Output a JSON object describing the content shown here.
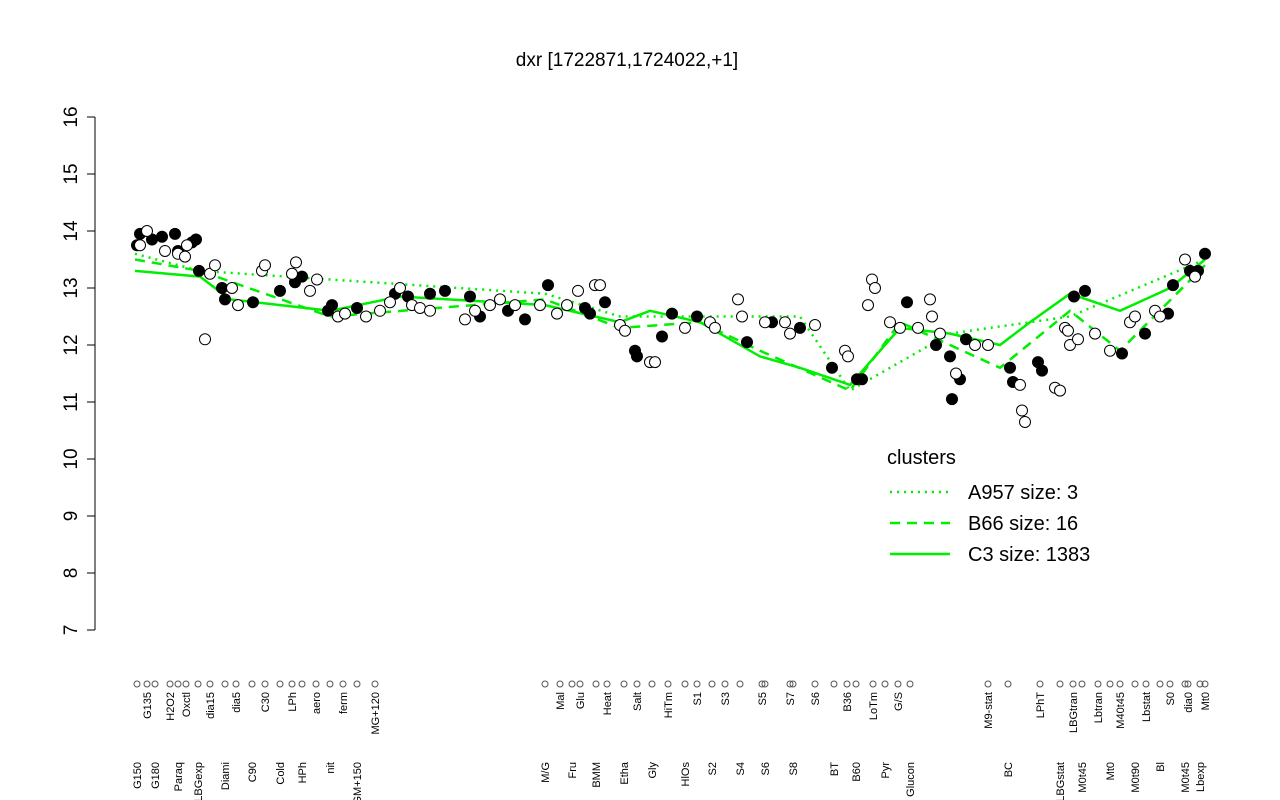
{
  "chart_data": {
    "type": "scatter",
    "title": "dxr [1722871,1724022,+1]",
    "xlim": [
      0,
      1123
    ],
    "ylim": [
      7,
      16
    ],
    "yticks": [
      7,
      8,
      9,
      10,
      11,
      12,
      13,
      14,
      15,
      16
    ],
    "xticks": [
      {
        "value": 42,
        "label": "G150"
      },
      {
        "value": 52,
        "label": "G135"
      },
      {
        "value": 60,
        "label": "G180"
      },
      {
        "value": 75,
        "label": "H2O2"
      },
      {
        "value": 83,
        "label": "Paraq"
      },
      {
        "value": 91,
        "label": "Oxctl"
      },
      {
        "value": 103,
        "label": "LBGexp"
      },
      {
        "value": 115,
        "label": "dia15"
      },
      {
        "value": 130,
        "label": "Diami"
      },
      {
        "value": 141,
        "label": "dia5"
      },
      {
        "value": 157,
        "label": "C90"
      },
      {
        "value": 170,
        "label": "C30"
      },
      {
        "value": 185,
        "label": "Cold"
      },
      {
        "value": 197,
        "label": "LPh"
      },
      {
        "value": 207,
        "label": "HPh"
      },
      {
        "value": 221,
        "label": "aero"
      },
      {
        "value": 235,
        "label": "nit"
      },
      {
        "value": 248,
        "label": "ferm"
      },
      {
        "value": 262,
        "label": "GM+150"
      },
      {
        "value": 280,
        "label": "MG+120"
      },
      {
        "value": 450,
        "label": "M/G"
      },
      {
        "value": 465,
        "label": "Mal"
      },
      {
        "value": 477,
        "label": "Fru"
      },
      {
        "value": 485,
        "label": "Glu"
      },
      {
        "value": 501,
        "label": "BMM"
      },
      {
        "value": 512,
        "label": "Heat"
      },
      {
        "value": 529,
        "label": "Etha"
      },
      {
        "value": 542,
        "label": "Salt"
      },
      {
        "value": 557,
        "label": "Gly"
      },
      {
        "value": 573,
        "label": "HiTm"
      },
      {
        "value": 590,
        "label": "HlOs"
      },
      {
        "value": 602,
        "label": "S1"
      },
      {
        "value": 617,
        "label": "S2"
      },
      {
        "value": 630,
        "label": "S3"
      },
      {
        "value": 645,
        "label": "S4"
      },
      {
        "value": 667,
        "label": "S5"
      },
      {
        "value": 670,
        "label": "S6"
      },
      {
        "value": 695,
        "label": "S7"
      },
      {
        "value": 698,
        "label": "S8"
      },
      {
        "value": 720,
        "label": "S6"
      },
      {
        "value": 739,
        "label": "BT"
      },
      {
        "value": 752,
        "label": "B36"
      },
      {
        "value": 761,
        "label": "B60"
      },
      {
        "value": 778,
        "label": "LoTm"
      },
      {
        "value": 790,
        "label": "Pyr"
      },
      {
        "value": 803,
        "label": "G/S"
      },
      {
        "value": 815,
        "label": "Glucon"
      },
      {
        "value": 893,
        "label": "M9-stat"
      },
      {
        "value": 913,
        "label": "BC"
      },
      {
        "value": 945,
        "label": "LPhT"
      },
      {
        "value": 965,
        "label": "LBGstat"
      },
      {
        "value": 978,
        "label": "LBGtran"
      },
      {
        "value": 987,
        "label": "M0t45"
      },
      {
        "value": 1003,
        "label": "Lbtran"
      },
      {
        "value": 1015,
        "label": "Mt0"
      },
      {
        "value": 1025,
        "label": "M40t45"
      },
      {
        "value": 1040,
        "label": "M0t90"
      },
      {
        "value": 1051,
        "label": "Lbstat"
      },
      {
        "value": 1065,
        "label": "Bl"
      },
      {
        "value": 1075,
        "label": "S0"
      },
      {
        "value": 1090,
        "label": "M0t45"
      },
      {
        "value": 1093,
        "label": "dia0"
      },
      {
        "value": 1105,
        "label": "Lbexp"
      },
      {
        "value": 1110,
        "label": "Mt0"
      }
    ],
    "points": [
      {
        "filled": true,
        "color": "#000000",
        "x": [
          42,
          45,
          57,
          67,
          80,
          83,
          97,
          101,
          104,
          127,
          130,
          158,
          185,
          200,
          207,
          233,
          237,
          262,
          300,
          313,
          335,
          350,
          375,
          385,
          413,
          430,
          453,
          490,
          495,
          510,
          540,
          542,
          567,
          577,
          602,
          652,
          677,
          705,
          737,
          762,
          767,
          812,
          841,
          855,
          857,
          865,
          871,
          915,
          918,
          943,
          947,
          979,
          990,
          1027,
          1050,
          1073,
          1078,
          1095,
          1103,
          1110
        ],
        "y": [
          13.75,
          13.95,
          13.85,
          13.9,
          13.95,
          13.65,
          13.8,
          13.85,
          13.3,
          13.0,
          12.8,
          12.75,
          12.95,
          13.1,
          13.2,
          12.6,
          12.7,
          12.65,
          12.9,
          12.85,
          12.9,
          12.95,
          12.85,
          12.5,
          12.6,
          12.45,
          13.05,
          12.65,
          12.55,
          12.75,
          11.9,
          11.8,
          12.15,
          12.55,
          12.5,
          12.05,
          12.4,
          12.3,
          11.6,
          11.4,
          11.4,
          12.75,
          12.0,
          11.8,
          11.05,
          11.4,
          12.1,
          11.6,
          11.35,
          11.7,
          11.55,
          12.85,
          12.95,
          11.85,
          12.2,
          12.55,
          13.05,
          13.3,
          13.3,
          13.6
        ]
      },
      {
        "filled": false,
        "color": "#000000",
        "x": [
          45,
          52,
          70,
          83,
          90,
          92,
          110,
          115,
          120,
          137,
          143,
          167,
          170,
          197,
          201,
          215,
          222,
          243,
          250,
          271,
          285,
          295,
          305,
          317,
          325,
          335,
          370,
          380,
          395,
          405,
          420,
          445,
          462,
          472,
          483,
          500,
          505,
          525,
          530,
          555,
          560,
          590,
          615,
          620,
          643,
          647,
          670,
          690,
          695,
          720,
          750,
          753,
          777,
          780,
          773,
          795,
          805,
          823,
          835,
          837,
          845,
          861,
          880,
          893,
          925,
          927,
          930,
          960,
          965,
          970,
          973,
          975,
          983,
          1000,
          1015,
          1035,
          1040,
          1060,
          1065,
          1090,
          1100
        ],
        "y": [
          13.75,
          14.0,
          13.65,
          13.6,
          13.55,
          13.75,
          12.1,
          13.25,
          13.4,
          13.0,
          12.7,
          13.3,
          13.4,
          13.25,
          13.45,
          12.95,
          13.15,
          12.5,
          12.55,
          12.5,
          12.6,
          12.75,
          13.0,
          12.7,
          12.65,
          12.6,
          12.45,
          12.6,
          12.7,
          12.8,
          12.7,
          12.7,
          12.55,
          12.7,
          12.95,
          13.05,
          13.05,
          12.35,
          12.25,
          11.7,
          11.7,
          12.3,
          12.4,
          12.3,
          12.8,
          12.5,
          12.4,
          12.4,
          12.2,
          12.35,
          11.9,
          11.8,
          13.15,
          13.0,
          12.7,
          12.4,
          12.3,
          12.3,
          12.8,
          12.5,
          12.2,
          11.5,
          12.0,
          12.0,
          11.3,
          10.85,
          10.65,
          11.25,
          11.2,
          12.3,
          12.25,
          12.0,
          12.1,
          12.2,
          11.9,
          12.4,
          12.5,
          12.6,
          12.5,
          13.5,
          13.2
        ]
      }
    ],
    "legend_title": "clusters",
    "series": [
      {
        "name": "A957 size: 3",
        "color": "#00ee00",
        "style": "dotted",
        "x": [
          40,
          105,
          450,
          525,
          705,
          755,
          855,
          975,
          1110
        ],
        "values": [
          13.6,
          13.3,
          12.9,
          12.5,
          12.5,
          11.2,
          12.2,
          12.5,
          13.5
        ]
      },
      {
        "name": "B66 size: 16",
        "color": "#00ee00",
        "style": "dashed",
        "x": [
          40,
          105,
          235,
          450,
          525,
          605,
          665,
          755,
          805,
          905,
          975,
          1025,
          1110
        ],
        "values": [
          13.5,
          13.3,
          12.5,
          12.8,
          12.3,
          12.4,
          11.9,
          11.2,
          12.4,
          11.6,
          12.6,
          11.9,
          13.4
        ]
      },
      {
        "name": "C3 size: 1383",
        "color": "#00ee00",
        "style": "solid",
        "x": [
          40,
          105,
          135,
          235,
          305,
          450,
          525,
          555,
          605,
          665,
          705,
          755,
          805,
          855,
          905,
          935,
          975,
          1025,
          1075,
          1110
        ],
        "values": [
          13.3,
          13.2,
          12.8,
          12.6,
          12.85,
          12.7,
          12.4,
          12.6,
          12.4,
          11.8,
          11.6,
          11.3,
          12.3,
          12.2,
          12.0,
          12.4,
          12.9,
          12.6,
          13.0,
          13.5
        ]
      }
    ]
  }
}
